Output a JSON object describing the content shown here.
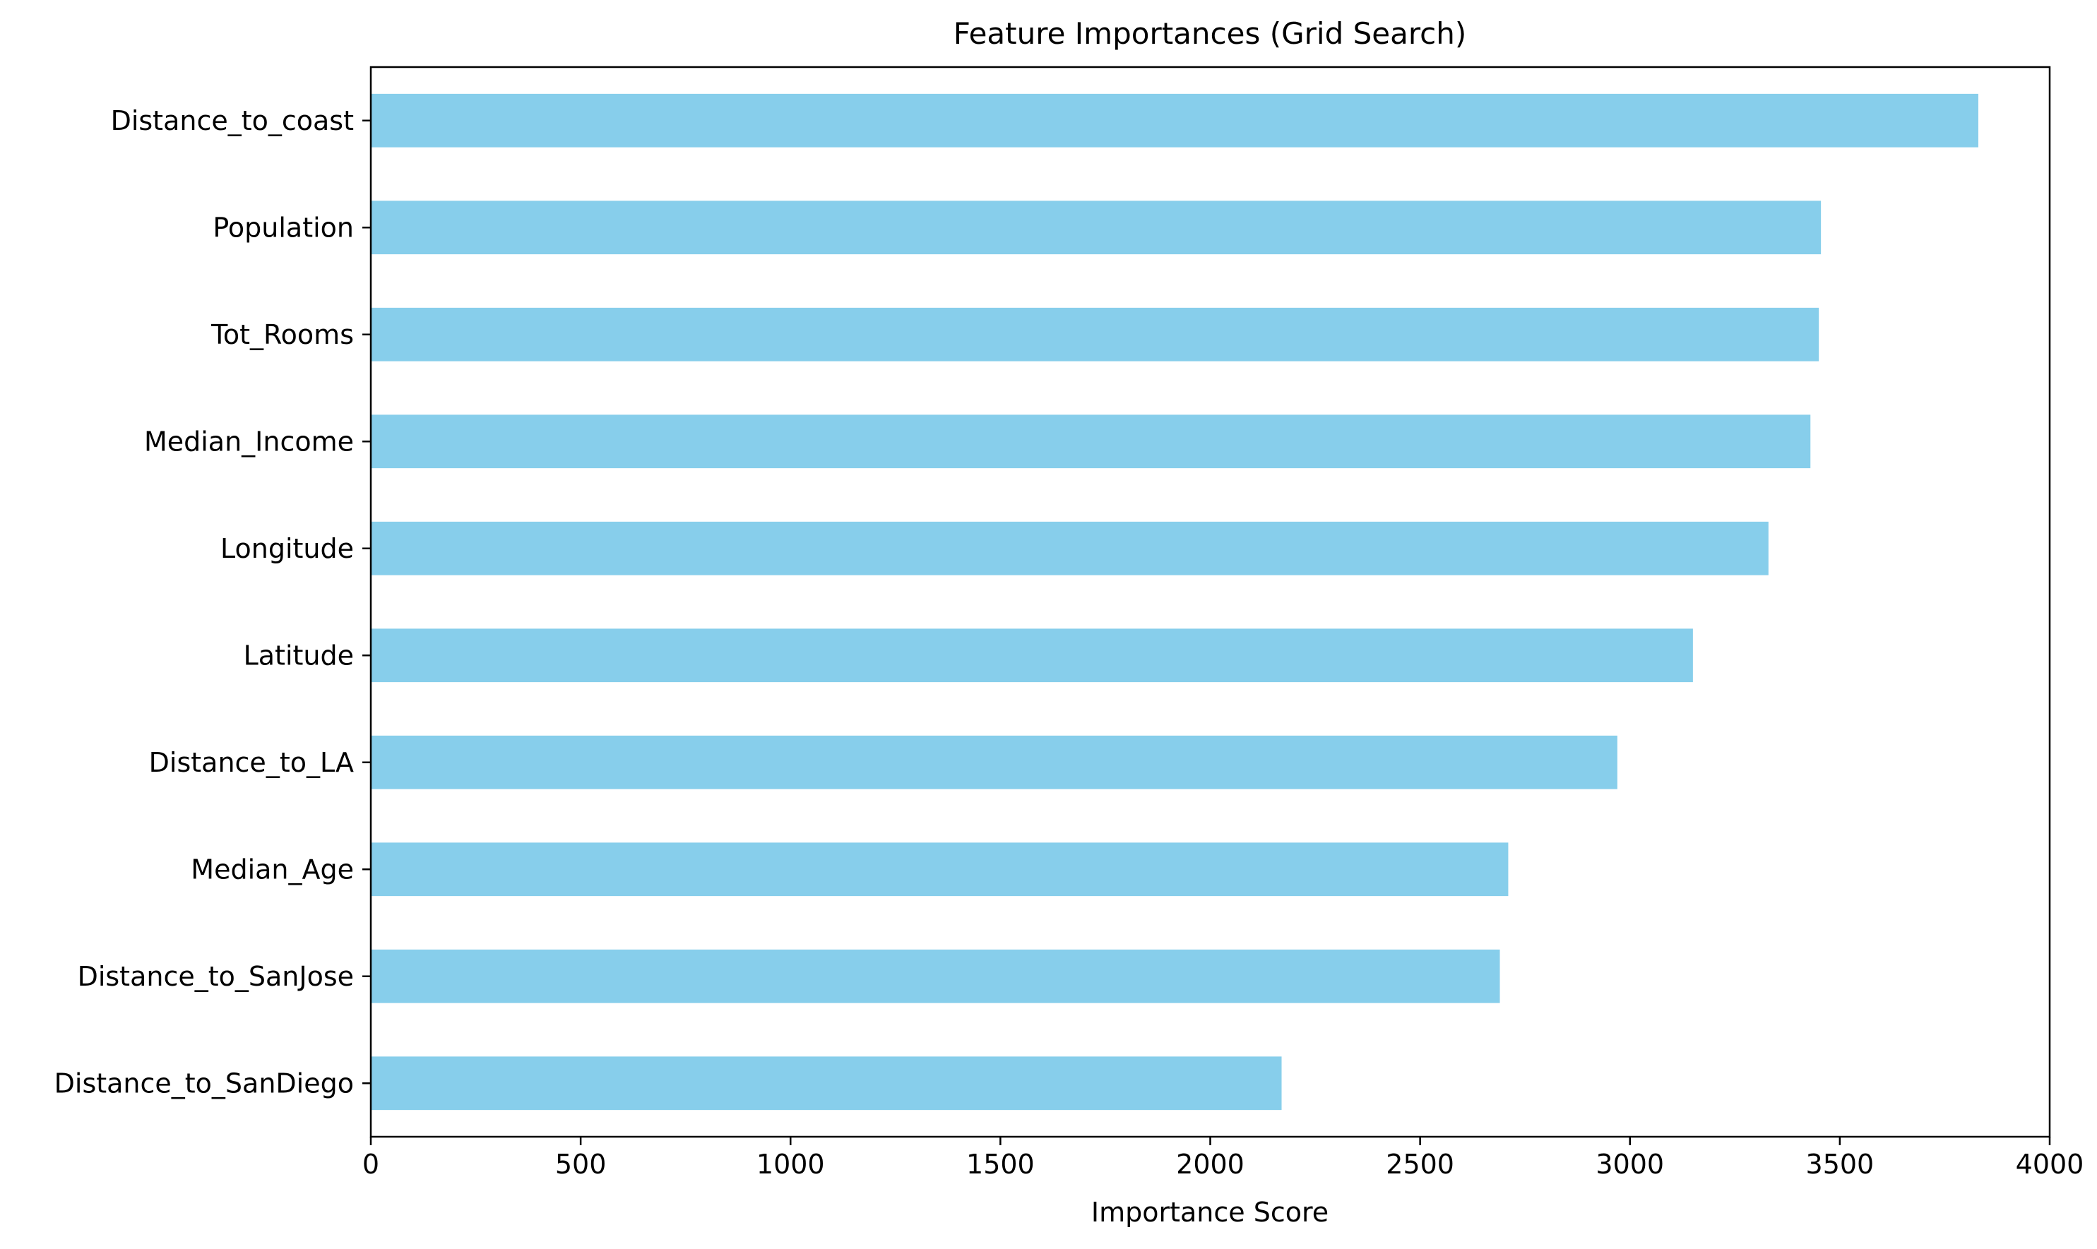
{
  "chart_data": {
    "type": "bar",
    "orientation": "horizontal",
    "title": "Feature Importances (Grid Search)",
    "xlabel": "Importance Score",
    "ylabel": "",
    "xlim": [
      0,
      4000
    ],
    "xticks": [
      0,
      500,
      1000,
      1500,
      2000,
      2500,
      3000,
      3500,
      4000
    ],
    "categories": [
      "Distance_to_coast",
      "Population",
      "Tot_Rooms",
      "Median_Income",
      "Longitude",
      "Latitude",
      "Distance_to_LA",
      "Median_Age",
      "Distance_to_SanJose",
      "Distance_to_SanDiego"
    ],
    "values": [
      3830,
      3455,
      3450,
      3430,
      3330,
      3150,
      2970,
      2710,
      2690,
      2170
    ],
    "bar_color": "#87CEEB",
    "grid": false,
    "legend": "none"
  }
}
